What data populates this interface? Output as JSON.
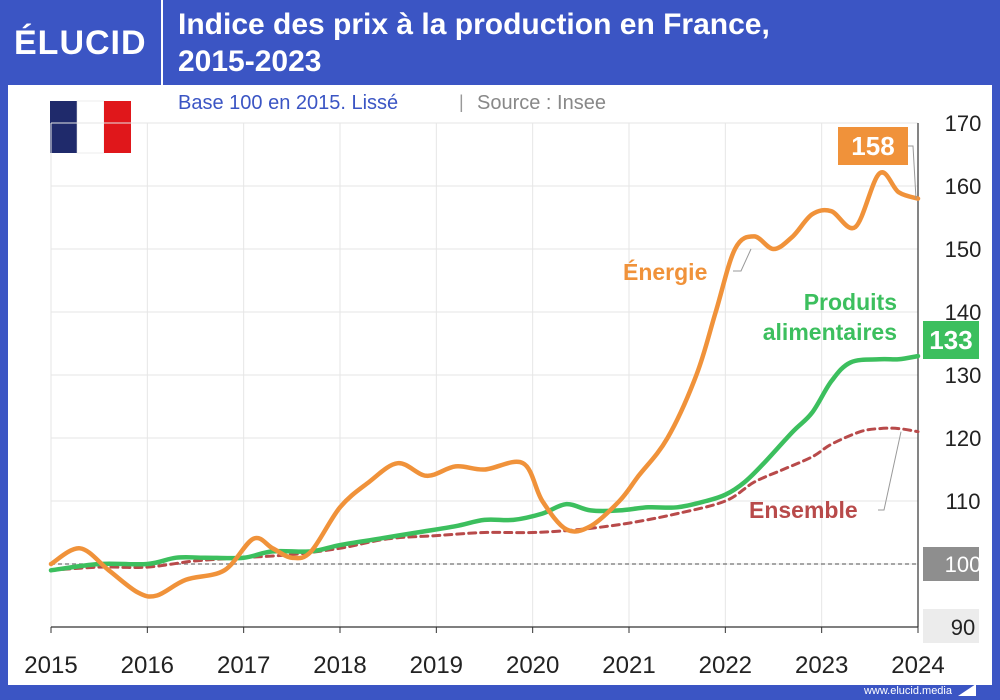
{
  "brand": {
    "logo": "ÉLUCID",
    "url": "www.elucid.media"
  },
  "header": {
    "title_line1": "Indice des prix à la production en France,",
    "title_line2": "2015-2023"
  },
  "subtitle": {
    "base": "Base 100 en 2015. Lissé",
    "separator": "|",
    "source": "Source : Insee"
  },
  "colors": {
    "header_bg": "#3b55c4",
    "energie": "#f0923a",
    "alimentaire": "#3cbf5e",
    "ensemble": "#b84a4a",
    "baseline": "#888888"
  },
  "chart_data": {
    "type": "line",
    "title": "Indice des prix à la production en France, 2015-2023",
    "subtitle": "Base 100 en 2015. Lissé | Source : Insee",
    "xlim": [
      2015,
      2024
    ],
    "ylim": [
      90,
      170
    ],
    "x_ticks": [
      "2015",
      "2016",
      "2017",
      "2018",
      "2019",
      "2020",
      "2021",
      "2022",
      "2023",
      "2024"
    ],
    "y_ticks": [
      "90",
      "100",
      "110",
      "120",
      "130",
      "140",
      "150",
      "160",
      "170"
    ],
    "reference_line": {
      "value": 100,
      "label": "100"
    },
    "series": [
      {
        "name": "Énergie",
        "style": "solid",
        "end_label": "158",
        "points": [
          [
            2015,
            100
          ],
          [
            2015.3,
            102.5
          ],
          [
            2015.6,
            99
          ],
          [
            2015.9,
            95.5
          ],
          [
            2016.1,
            95
          ],
          [
            2016.4,
            97.5
          ],
          [
            2016.8,
            99
          ],
          [
            2017.1,
            104
          ],
          [
            2017.3,
            102.5
          ],
          [
            2017.5,
            101
          ],
          [
            2017.7,
            102
          ],
          [
            2018.0,
            109
          ],
          [
            2018.3,
            113
          ],
          [
            2018.6,
            116
          ],
          [
            2018.9,
            114
          ],
          [
            2019.2,
            115.5
          ],
          [
            2019.5,
            115
          ],
          [
            2019.9,
            116
          ],
          [
            2020.1,
            110
          ],
          [
            2020.35,
            105.5
          ],
          [
            2020.6,
            106
          ],
          [
            2020.9,
            110
          ],
          [
            2021.1,
            114
          ],
          [
            2021.4,
            120
          ],
          [
            2021.7,
            130
          ],
          [
            2021.9,
            140
          ],
          [
            2022.1,
            150
          ],
          [
            2022.3,
            152
          ],
          [
            2022.5,
            150
          ],
          [
            2022.7,
            152
          ],
          [
            2022.9,
            155.5
          ],
          [
            2023.1,
            156
          ],
          [
            2023.35,
            153.5
          ],
          [
            2023.6,
            162
          ],
          [
            2023.8,
            159
          ],
          [
            2024.0,
            158
          ]
        ]
      },
      {
        "name": "Produits alimentaires",
        "style": "solid",
        "end_label": "133",
        "points": [
          [
            2015,
            99
          ],
          [
            2015.5,
            100
          ],
          [
            2016.0,
            100
          ],
          [
            2016.3,
            101
          ],
          [
            2016.6,
            101
          ],
          [
            2017.0,
            101
          ],
          [
            2017.3,
            102
          ],
          [
            2017.7,
            102
          ],
          [
            2018.0,
            103
          ],
          [
            2018.4,
            104
          ],
          [
            2018.8,
            105
          ],
          [
            2019.2,
            106
          ],
          [
            2019.5,
            107
          ],
          [
            2019.8,
            107
          ],
          [
            2020.1,
            108
          ],
          [
            2020.35,
            109.5
          ],
          [
            2020.6,
            108.5
          ],
          [
            2020.9,
            108.5
          ],
          [
            2021.2,
            109
          ],
          [
            2021.5,
            109
          ],
          [
            2021.8,
            110
          ],
          [
            2022.0,
            111
          ],
          [
            2022.2,
            113
          ],
          [
            2022.4,
            116
          ],
          [
            2022.7,
            121
          ],
          [
            2022.9,
            124
          ],
          [
            2023.1,
            129
          ],
          [
            2023.3,
            132
          ],
          [
            2023.6,
            132.5
          ],
          [
            2023.8,
            132.5
          ],
          [
            2024.0,
            133
          ]
        ]
      },
      {
        "name": "Ensemble",
        "style": "dashed",
        "end_label": "",
        "points": [
          [
            2015,
            99
          ],
          [
            2015.5,
            99.5
          ],
          [
            2016.0,
            99.5
          ],
          [
            2016.5,
            100.5
          ],
          [
            2017.0,
            101
          ],
          [
            2017.5,
            101.5
          ],
          [
            2018.0,
            102.5
          ],
          [
            2018.5,
            104
          ],
          [
            2019.0,
            104.5
          ],
          [
            2019.5,
            105
          ],
          [
            2020.0,
            105
          ],
          [
            2020.5,
            105.5
          ],
          [
            2021.0,
            106.5
          ],
          [
            2021.5,
            108
          ],
          [
            2022.0,
            110
          ],
          [
            2022.3,
            113
          ],
          [
            2022.6,
            115
          ],
          [
            2022.9,
            117
          ],
          [
            2023.1,
            119
          ],
          [
            2023.4,
            121
          ],
          [
            2023.6,
            121.5
          ],
          [
            2023.8,
            121.5
          ],
          [
            2024.0,
            121
          ]
        ]
      }
    ],
    "annotations": [
      {
        "text": "Énergie",
        "series": "Énergie"
      },
      {
        "text": "Produits",
        "series": "Produits alimentaires"
      },
      {
        "text": "alimentaires",
        "series": "Produits alimentaires"
      },
      {
        "text": "Ensemble",
        "series": "Ensemble"
      }
    ]
  }
}
